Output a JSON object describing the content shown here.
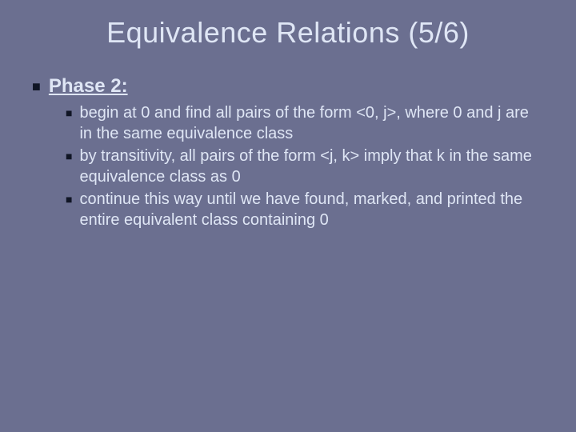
{
  "background_color": "#6b6f90",
  "text_color": "#dfe6f5",
  "bullet_color": "#101525",
  "title": "Equivalence Relations (5/6)",
  "title_fontsize": 36,
  "main_bullet": {
    "label": "Phase 2:",
    "fontsize": 24,
    "bold": true,
    "underline": true
  },
  "sub_bullets": [
    "begin at 0 and find all pairs of the form <0, j>, where 0 and j are in the same equivalence class",
    "by transitivity, all pairs of the form <j, k> imply that k in the same equivalence class as 0",
    "continue this way until we have found, marked, and printed the entire equivalent class containing 0"
  ],
  "sub_fontsize": 20
}
